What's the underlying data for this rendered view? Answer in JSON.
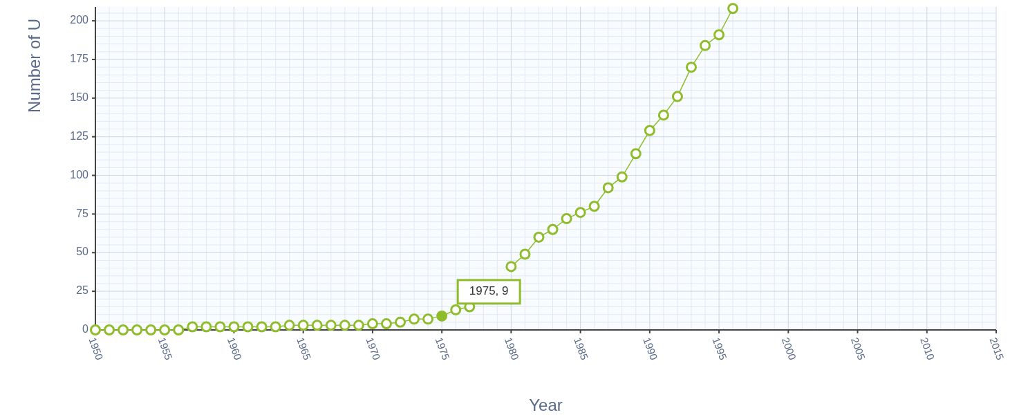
{
  "chart_data": {
    "type": "line",
    "xlabel": "Year",
    "ylabel": "Number of U",
    "x": [
      1950,
      1951,
      1952,
      1953,
      1954,
      1955,
      1956,
      1957,
      1958,
      1959,
      1960,
      1961,
      1962,
      1963,
      1964,
      1965,
      1966,
      1967,
      1968,
      1969,
      1970,
      1971,
      1972,
      1973,
      1974,
      1975,
      1976,
      1977,
      1978,
      1979,
      1980,
      1981,
      1982,
      1983,
      1984,
      1985,
      1986,
      1987,
      1988,
      1989,
      1990,
      1991,
      1992,
      1993,
      1994,
      1995,
      1996
    ],
    "series": [
      {
        "color": "#8fbc2b",
        "values": [
          0,
          0,
          0,
          0,
          0,
          0,
          0,
          2,
          2,
          2,
          2,
          2,
          2,
          2,
          3,
          3,
          3,
          3,
          3,
          3,
          4,
          4,
          5,
          7,
          7,
          9,
          13,
          15,
          null,
          null,
          41,
          49,
          60,
          65,
          72,
          76,
          80,
          92,
          99,
          114,
          129,
          139,
          151,
          170,
          184,
          191,
          208
        ]
      }
    ],
    "xlim": [
      1950,
      2015
    ],
    "xticks": [
      1950,
      1955,
      1960,
      1965,
      1970,
      1975,
      1980,
      1985,
      1990,
      1995,
      2000,
      2005,
      2010,
      2015
    ],
    "ylim": [
      0,
      209
    ],
    "yticks": [
      0,
      25,
      50,
      75,
      100,
      125,
      150,
      175,
      200
    ],
    "grid": true,
    "marker": "circle",
    "line_style": "solid",
    "annotations": [
      {
        "text": "1975, 9",
        "x": 1975,
        "y": 9
      }
    ]
  }
}
